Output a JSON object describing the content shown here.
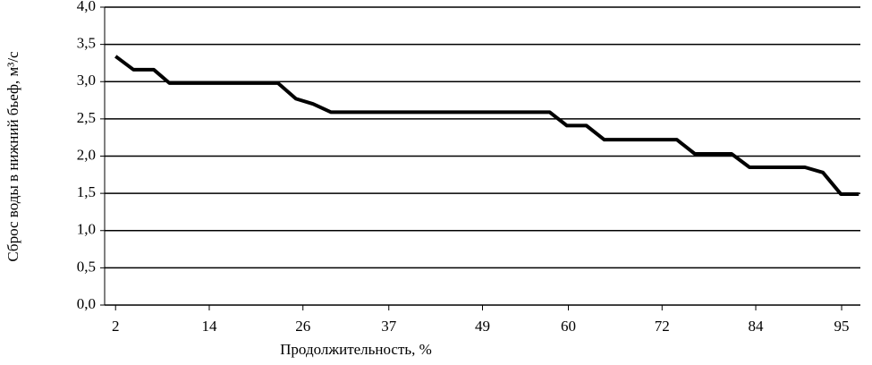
{
  "chart_data": {
    "type": "line",
    "y_label": "Сброс воды в нижний бьеф, м³/с",
    "x_label": "Продолжительность, %",
    "x": [
      2,
      4.3,
      6.9,
      8.9,
      22.8,
      25.1,
      27.3,
      29.6,
      57.6,
      59.8,
      62.3,
      64.6,
      73.9,
      76.2,
      80.9,
      83.2,
      90.3,
      92.6,
      94.9,
      97.2
    ],
    "series": [
      {
        "color": "#000000",
        "values": [
          3.34,
          3.16,
          3.16,
          2.98,
          2.98,
          2.77,
          2.7,
          2.59,
          2.59,
          2.41,
          2.41,
          2.22,
          2.22,
          2.03,
          2.03,
          1.85,
          1.85,
          1.78,
          1.49,
          1.49
        ]
      }
    ],
    "xlim": [
      0.6,
      97.4
    ],
    "xticks": [
      2,
      14,
      26,
      37,
      49,
      60,
      72,
      84,
      95
    ],
    "ylim": [
      0,
      4
    ],
    "yticks": [
      {
        "value": 0,
        "label": "0,0"
      },
      {
        "value": 0.5,
        "label": "0,5"
      },
      {
        "value": 1,
        "label": "1,0"
      },
      {
        "value": 1.5,
        "label": "1,5"
      },
      {
        "value": 2,
        "label": "2,0"
      },
      {
        "value": 2.5,
        "label": "2,5"
      },
      {
        "value": 3,
        "label": "3,0"
      },
      {
        "value": 3.5,
        "label": "3,5"
      },
      {
        "value": 4,
        "label": "4,0"
      }
    ],
    "grid": true
  }
}
